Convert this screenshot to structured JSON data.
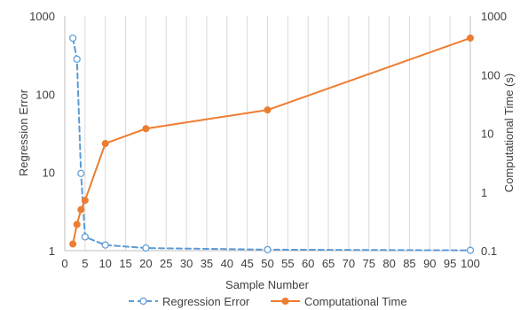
{
  "chart_data": {
    "type": "line",
    "xlabel": "Sample Number",
    "ylabel": "Regression Error",
    "y2label": "Computational Time (s)",
    "xlim": [
      0,
      100
    ],
    "xticks": [
      0,
      5,
      10,
      15,
      20,
      25,
      30,
      35,
      40,
      45,
      50,
      55,
      60,
      65,
      70,
      75,
      80,
      85,
      90,
      95,
      100
    ],
    "ylim": [
      1,
      1000
    ],
    "yscale": "log",
    "yticks": [
      1,
      10,
      100,
      1000
    ],
    "y2lim": [
      0.1,
      1000
    ],
    "y2scale": "log",
    "y2ticks": [
      0.1,
      1,
      10,
      100,
      1000
    ],
    "y2ticklabels": [
      "0.1",
      "1",
      "10",
      "100",
      "1000"
    ],
    "grid": "vertical",
    "legend": "bottom",
    "series": [
      {
        "name": "Regression Error",
        "axis": "left",
        "color": "#5b9bd5",
        "line": "dashed",
        "marker": "open-circle",
        "x": [
          2,
          3,
          4,
          5,
          10,
          20,
          50,
          100
        ],
        "y": [
          520,
          280,
          9.7,
          1.5,
          1.18,
          1.08,
          1.03,
          1.01
        ]
      },
      {
        "name": "Computational Time",
        "axis": "right",
        "color": "#ed7d31",
        "line": "solid",
        "marker": "filled-circle",
        "x": [
          2,
          3,
          4,
          5,
          10,
          20,
          50,
          100
        ],
        "y": [
          0.13,
          0.28,
          0.5,
          0.72,
          6.7,
          12,
          25,
          420
        ]
      }
    ]
  }
}
